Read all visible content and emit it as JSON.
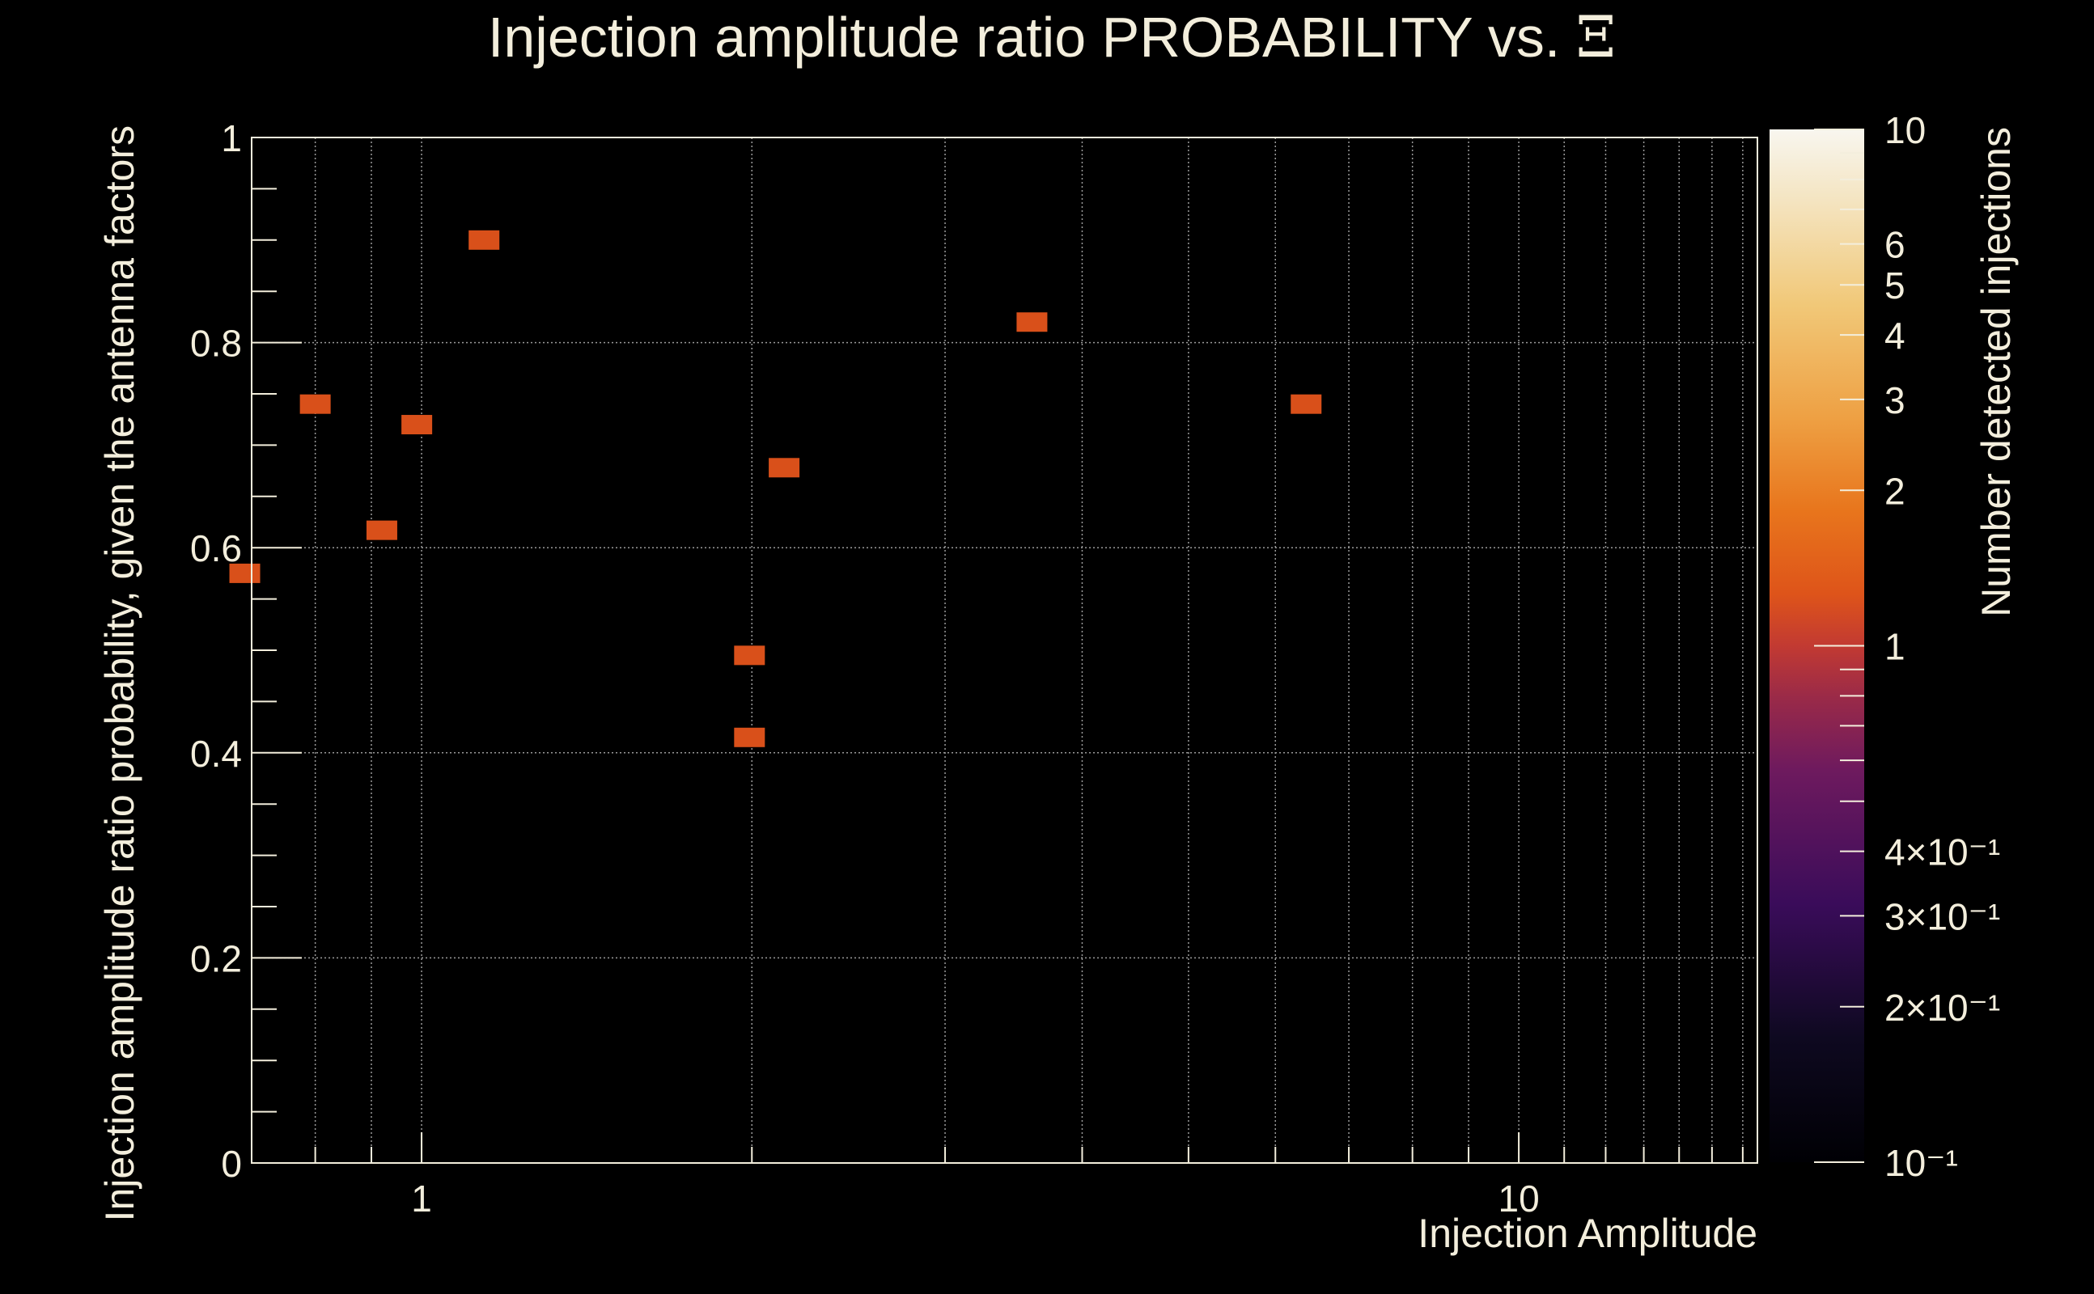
{
  "chart_data": {
    "type": "heatmap",
    "title": "Injection amplitude ratio PROBABILITY vs.",
    "title_symbol": "Ξ",
    "xlabel": "Injection Amplitude",
    "ylabel": "Injection amplitude ratio probability, given the antenna factors",
    "zlabel": "Number detected injections",
    "x_scale": "log",
    "xlim": [
      0.7,
      16.5
    ],
    "ylim": [
      0,
      1
    ],
    "z_scale": "log",
    "zlim": [
      0.1,
      10
    ],
    "grid": true,
    "x_major_ticks": [
      {
        "value": 1,
        "label": "1"
      },
      {
        "value": 10,
        "label": "10"
      }
    ],
    "y_major_ticks": [
      {
        "value": 0,
        "label": "0"
      },
      {
        "value": 0.2,
        "label": "0.2"
      },
      {
        "value": 0.4,
        "label": "0.4"
      },
      {
        "value": 0.6,
        "label": "0.6"
      },
      {
        "value": 0.8,
        "label": "0.8"
      },
      {
        "value": 1,
        "label": "1"
      }
    ],
    "z_tick_labels": [
      {
        "value": 10,
        "label": "10"
      },
      {
        "value": 6,
        "label": "6"
      },
      {
        "value": 5,
        "label": "5"
      },
      {
        "value": 4,
        "label": "4"
      },
      {
        "value": 3,
        "label": "3"
      },
      {
        "value": 2,
        "label": "2"
      },
      {
        "value": 1,
        "label": "1"
      },
      {
        "value": 0.4,
        "label": "4×10⁻¹"
      },
      {
        "value": 0.3,
        "label": "3×10⁻¹"
      },
      {
        "value": 0.2,
        "label": "2×10⁻¹"
      },
      {
        "value": 0.1,
        "label": "10⁻¹"
      }
    ],
    "points": [
      {
        "x": 0.69,
        "y": 0.575,
        "z": 1
      },
      {
        "x": 0.8,
        "y": 0.74,
        "z": 1
      },
      {
        "x": 0.92,
        "y": 0.617,
        "z": 1
      },
      {
        "x": 0.99,
        "y": 0.72,
        "z": 1
      },
      {
        "x": 1.14,
        "y": 0.9,
        "z": 1
      },
      {
        "x": 1.99,
        "y": 0.495,
        "z": 1
      },
      {
        "x": 1.99,
        "y": 0.415,
        "z": 1
      },
      {
        "x": 2.14,
        "y": 0.678,
        "z": 1
      },
      {
        "x": 3.6,
        "y": 0.82,
        "z": 1
      },
      {
        "x": 6.4,
        "y": 0.74,
        "z": 1
      }
    ],
    "colors": {
      "background": "#000000",
      "text": "#f3eedc",
      "cell": "#d9501a"
    }
  }
}
